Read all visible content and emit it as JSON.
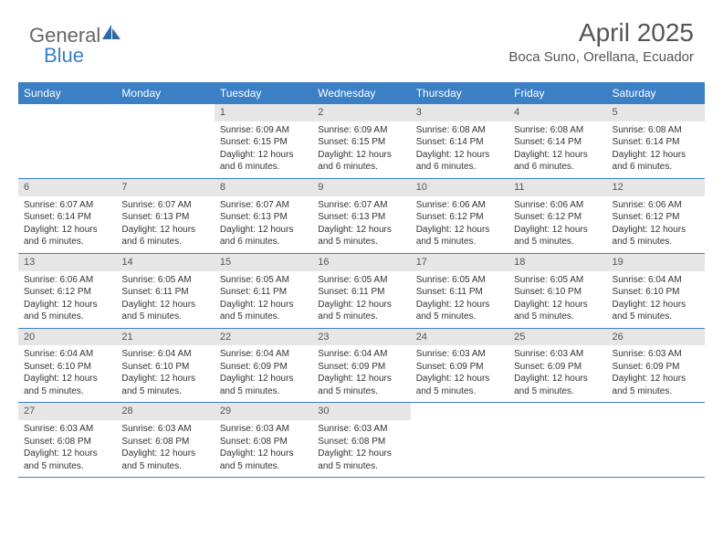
{
  "brand": {
    "part1": "General",
    "part2": "Blue"
  },
  "title": {
    "month": "April 2025",
    "location": "Boca Suno, Orellana, Ecuador"
  },
  "colors": {
    "header_bg": "#3b7fc4",
    "row_border": "#3b7fc4",
    "daynum_bg": "#e6e6e6"
  },
  "weekdays": [
    "Sunday",
    "Monday",
    "Tuesday",
    "Wednesday",
    "Thursday",
    "Friday",
    "Saturday"
  ],
  "labels": {
    "sunrise": "Sunrise:",
    "sunset": "Sunset:",
    "daylight": "Daylight:"
  },
  "weeks": [
    [
      {
        "empty": true
      },
      {
        "empty": true
      },
      {
        "day": "1",
        "sunrise": "6:09 AM",
        "sunset": "6:15 PM",
        "daylight": "12 hours and 6 minutes."
      },
      {
        "day": "2",
        "sunrise": "6:09 AM",
        "sunset": "6:15 PM",
        "daylight": "12 hours and 6 minutes."
      },
      {
        "day": "3",
        "sunrise": "6:08 AM",
        "sunset": "6:14 PM",
        "daylight": "12 hours and 6 minutes."
      },
      {
        "day": "4",
        "sunrise": "6:08 AM",
        "sunset": "6:14 PM",
        "daylight": "12 hours and 6 minutes."
      },
      {
        "day": "5",
        "sunrise": "6:08 AM",
        "sunset": "6:14 PM",
        "daylight": "12 hours and 6 minutes."
      }
    ],
    [
      {
        "day": "6",
        "sunrise": "6:07 AM",
        "sunset": "6:14 PM",
        "daylight": "12 hours and 6 minutes."
      },
      {
        "day": "7",
        "sunrise": "6:07 AM",
        "sunset": "6:13 PM",
        "daylight": "12 hours and 6 minutes."
      },
      {
        "day": "8",
        "sunrise": "6:07 AM",
        "sunset": "6:13 PM",
        "daylight": "12 hours and 6 minutes."
      },
      {
        "day": "9",
        "sunrise": "6:07 AM",
        "sunset": "6:13 PM",
        "daylight": "12 hours and 5 minutes."
      },
      {
        "day": "10",
        "sunrise": "6:06 AM",
        "sunset": "6:12 PM",
        "daylight": "12 hours and 5 minutes."
      },
      {
        "day": "11",
        "sunrise": "6:06 AM",
        "sunset": "6:12 PM",
        "daylight": "12 hours and 5 minutes."
      },
      {
        "day": "12",
        "sunrise": "6:06 AM",
        "sunset": "6:12 PM",
        "daylight": "12 hours and 5 minutes."
      }
    ],
    [
      {
        "day": "13",
        "sunrise": "6:06 AM",
        "sunset": "6:12 PM",
        "daylight": "12 hours and 5 minutes."
      },
      {
        "day": "14",
        "sunrise": "6:05 AM",
        "sunset": "6:11 PM",
        "daylight": "12 hours and 5 minutes."
      },
      {
        "day": "15",
        "sunrise": "6:05 AM",
        "sunset": "6:11 PM",
        "daylight": "12 hours and 5 minutes."
      },
      {
        "day": "16",
        "sunrise": "6:05 AM",
        "sunset": "6:11 PM",
        "daylight": "12 hours and 5 minutes."
      },
      {
        "day": "17",
        "sunrise": "6:05 AM",
        "sunset": "6:11 PM",
        "daylight": "12 hours and 5 minutes."
      },
      {
        "day": "18",
        "sunrise": "6:05 AM",
        "sunset": "6:10 PM",
        "daylight": "12 hours and 5 minutes."
      },
      {
        "day": "19",
        "sunrise": "6:04 AM",
        "sunset": "6:10 PM",
        "daylight": "12 hours and 5 minutes."
      }
    ],
    [
      {
        "day": "20",
        "sunrise": "6:04 AM",
        "sunset": "6:10 PM",
        "daylight": "12 hours and 5 minutes."
      },
      {
        "day": "21",
        "sunrise": "6:04 AM",
        "sunset": "6:10 PM",
        "daylight": "12 hours and 5 minutes."
      },
      {
        "day": "22",
        "sunrise": "6:04 AM",
        "sunset": "6:09 PM",
        "daylight": "12 hours and 5 minutes."
      },
      {
        "day": "23",
        "sunrise": "6:04 AM",
        "sunset": "6:09 PM",
        "daylight": "12 hours and 5 minutes."
      },
      {
        "day": "24",
        "sunrise": "6:03 AM",
        "sunset": "6:09 PM",
        "daylight": "12 hours and 5 minutes."
      },
      {
        "day": "25",
        "sunrise": "6:03 AM",
        "sunset": "6:09 PM",
        "daylight": "12 hours and 5 minutes."
      },
      {
        "day": "26",
        "sunrise": "6:03 AM",
        "sunset": "6:09 PM",
        "daylight": "12 hours and 5 minutes."
      }
    ],
    [
      {
        "day": "27",
        "sunrise": "6:03 AM",
        "sunset": "6:08 PM",
        "daylight": "12 hours and 5 minutes."
      },
      {
        "day": "28",
        "sunrise": "6:03 AM",
        "sunset": "6:08 PM",
        "daylight": "12 hours and 5 minutes."
      },
      {
        "day": "29",
        "sunrise": "6:03 AM",
        "sunset": "6:08 PM",
        "daylight": "12 hours and 5 minutes."
      },
      {
        "day": "30",
        "sunrise": "6:03 AM",
        "sunset": "6:08 PM",
        "daylight": "12 hours and 5 minutes."
      },
      {
        "empty": true
      },
      {
        "empty": true
      },
      {
        "empty": true
      }
    ]
  ]
}
